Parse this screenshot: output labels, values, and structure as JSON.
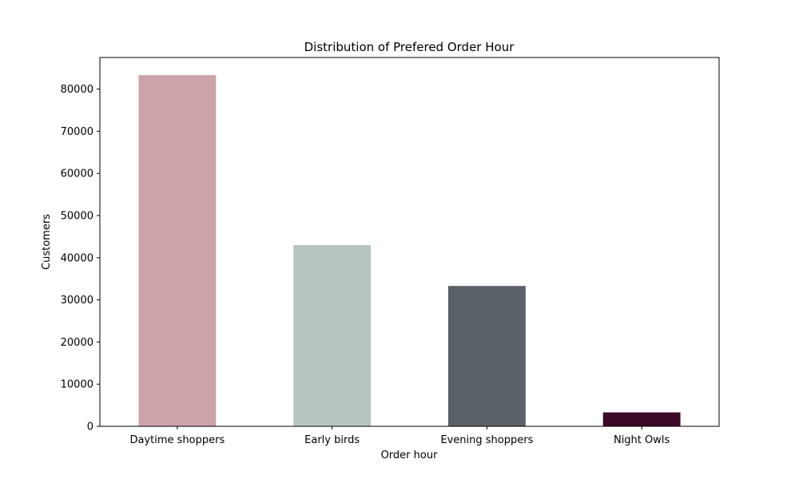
{
  "chart_data": {
    "type": "bar",
    "title": "Distribution of Prefered Order Hour",
    "xlabel": "Order hour",
    "ylabel": "Customers",
    "categories": [
      "Daytime shoppers",
      "Early birds",
      "Evening shoppers",
      "Night Owls"
    ],
    "values": [
      83300,
      43000,
      33300,
      3300
    ],
    "colors": [
      "#cca3a8",
      "#b7c5bf",
      "#5a6168",
      "#3d0a29"
    ],
    "ylim": [
      0,
      87500
    ],
    "yticks": [
      0,
      10000,
      20000,
      30000,
      40000,
      50000,
      60000,
      70000,
      80000
    ],
    "grid": false,
    "legend": "none"
  }
}
